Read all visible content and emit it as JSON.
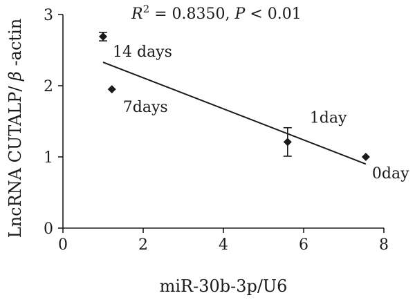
{
  "chart_data": {
    "type": "scatter",
    "title": "",
    "xlabel": "miR-30b-3p/U6",
    "ylabel": "LncRNA CUTALP/β-actin",
    "xlim": [
      0,
      8
    ],
    "ylim": [
      0,
      3
    ],
    "x_ticks": [
      "0",
      "2",
      "4",
      "6",
      "8"
    ],
    "y_ticks": [
      "0",
      "1",
      "2",
      "3"
    ],
    "grid": false,
    "legend": "none",
    "annotation": {
      "r_symbol": "R",
      "r_exponent": "2",
      "r_value": " = 0.8350, ",
      "p_symbol": "P",
      "p_value": " < 0.01"
    },
    "points": [
      {
        "x": 1.0,
        "y": 2.69,
        "err": 0.06,
        "label": "14 days"
      },
      {
        "x": 1.22,
        "y": 1.95,
        "err": 0,
        "label": "7days"
      },
      {
        "x": 5.6,
        "y": 1.21,
        "err": 0.2,
        "label": "1day"
      },
      {
        "x": 7.55,
        "y": 1.0,
        "err": 0,
        "label": "0day"
      }
    ],
    "fit_line": {
      "x": [
        1.0,
        7.55
      ],
      "y": [
        2.33,
        0.9
      ]
    },
    "marker": "diamond",
    "color": "#1a1a1a"
  }
}
